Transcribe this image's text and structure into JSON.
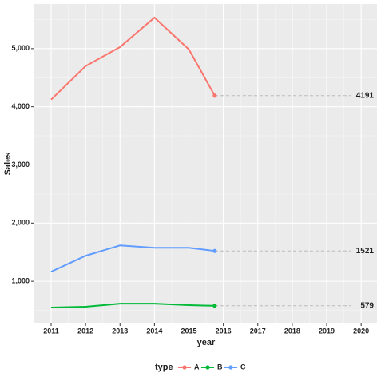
{
  "chart_data": {
    "type": "line",
    "x": [
      2011,
      2012,
      2013,
      2014,
      2015,
      2015.75
    ],
    "series": [
      {
        "name": "A",
        "color": "#F8766D",
        "values": [
          4123,
          4699,
          5027,
          5534,
          4986,
          4191
        ]
      },
      {
        "name": "B",
        "color": "#00BA38",
        "values": [
          548,
          562,
          616,
          616,
          589,
          579
        ]
      },
      {
        "name": "C",
        "color": "#619CFF",
        "values": [
          1164,
          1438,
          1616,
          1575,
          1575,
          1521
        ]
      }
    ],
    "xlim": [
      2010.49,
      2020.46
    ],
    "xticks": [
      2011,
      2012,
      2013,
      2014,
      2015,
      2016,
      2017,
      2018,
      2019,
      2020
    ],
    "ylim": [
      274,
      5767
    ],
    "yticks": [
      {
        "value": 1000,
        "label": "1,000"
      },
      {
        "value": 2000,
        "label": "2,000"
      },
      {
        "value": 3000,
        "label": "3,000"
      },
      {
        "value": 4000,
        "label": "4,000"
      },
      {
        "value": 5000,
        "label": "5,000"
      }
    ],
    "xlabel": "year",
    "ylabel": "Sales",
    "legend_title": "type",
    "grid": true
  }
}
